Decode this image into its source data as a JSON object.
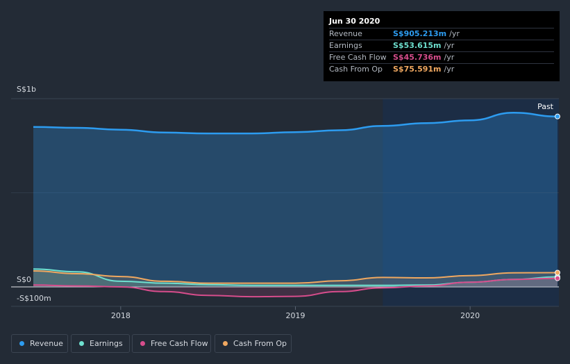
{
  "tooltip": {
    "date": "Jun 30 2020",
    "rows": [
      {
        "label": "Revenue",
        "value": "S$905.213m",
        "unit": "/yr",
        "color": "#2d9cf0"
      },
      {
        "label": "Earnings",
        "value": "S$53.615m",
        "unit": "/yr",
        "color": "#6ee0cf"
      },
      {
        "label": "Free Cash Flow",
        "value": "S$45.736m",
        "unit": "/yr",
        "color": "#d74d8c"
      },
      {
        "label": "Cash From Op",
        "value": "S$75.591m",
        "unit": "/yr",
        "color": "#f0a860"
      }
    ]
  },
  "legend": {
    "items": [
      {
        "label": "Revenue",
        "color": "#2d9cf0"
      },
      {
        "label": "Earnings",
        "color": "#6ee0cf"
      },
      {
        "label": "Free Cash Flow",
        "color": "#d74d8c"
      },
      {
        "label": "Cash From Op",
        "color": "#f0a860"
      }
    ]
  },
  "chart_data": {
    "type": "area",
    "ylim": [
      -100,
      1000
    ],
    "y_tick_labels": [
      "S$1b",
      "S$0",
      "-S$100m"
    ],
    "y_ticks": [
      1000,
      0,
      -100
    ],
    "x_range": [
      2017.5,
      2020.5
    ],
    "x_ticks": [
      2018,
      2019,
      2020
    ],
    "x_tick_labels": [
      "2018",
      "2019",
      "2020"
    ],
    "past_label": "Past",
    "past_start": 2019.5,
    "series": [
      {
        "name": "Revenue",
        "color": "#2d9cf0",
        "x": [
          2017.5,
          2017.75,
          2018.0,
          2018.25,
          2018.5,
          2018.75,
          2019.0,
          2019.25,
          2019.5,
          2019.75,
          2020.0,
          2020.25,
          2020.5
        ],
        "y": [
          850,
          845,
          835,
          820,
          815,
          815,
          822,
          832,
          855,
          870,
          885,
          925,
          905.213
        ]
      },
      {
        "name": "Earnings",
        "color": "#6ee0cf",
        "x": [
          2017.5,
          2017.75,
          2018.0,
          2018.25,
          2018.5,
          2018.75,
          2019.0,
          2019.25,
          2019.5,
          2019.75,
          2020.0,
          2020.25,
          2020.5
        ],
        "y": [
          95,
          80,
          30,
          20,
          12,
          8,
          8,
          8,
          8,
          10,
          25,
          40,
          53.615
        ]
      },
      {
        "name": "Free Cash Flow",
        "color": "#d74d8c",
        "x": [
          2017.5,
          2017.75,
          2018.0,
          2018.25,
          2018.5,
          2018.75,
          2019.0,
          2019.25,
          2019.5,
          2019.75,
          2020.0,
          2020.25,
          2020.5
        ],
        "y": [
          10,
          5,
          0,
          -25,
          -45,
          -52,
          -50,
          -25,
          -5,
          5,
          25,
          40,
          45.736
        ]
      },
      {
        "name": "Cash From Op",
        "color": "#f0a860",
        "x": [
          2017.5,
          2017.75,
          2018.0,
          2018.25,
          2018.5,
          2018.75,
          2019.0,
          2019.25,
          2019.5,
          2019.75,
          2020.0,
          2020.25,
          2020.5
        ],
        "y": [
          85,
          70,
          55,
          30,
          20,
          20,
          20,
          32,
          50,
          48,
          60,
          75,
          75.591
        ]
      }
    ]
  }
}
